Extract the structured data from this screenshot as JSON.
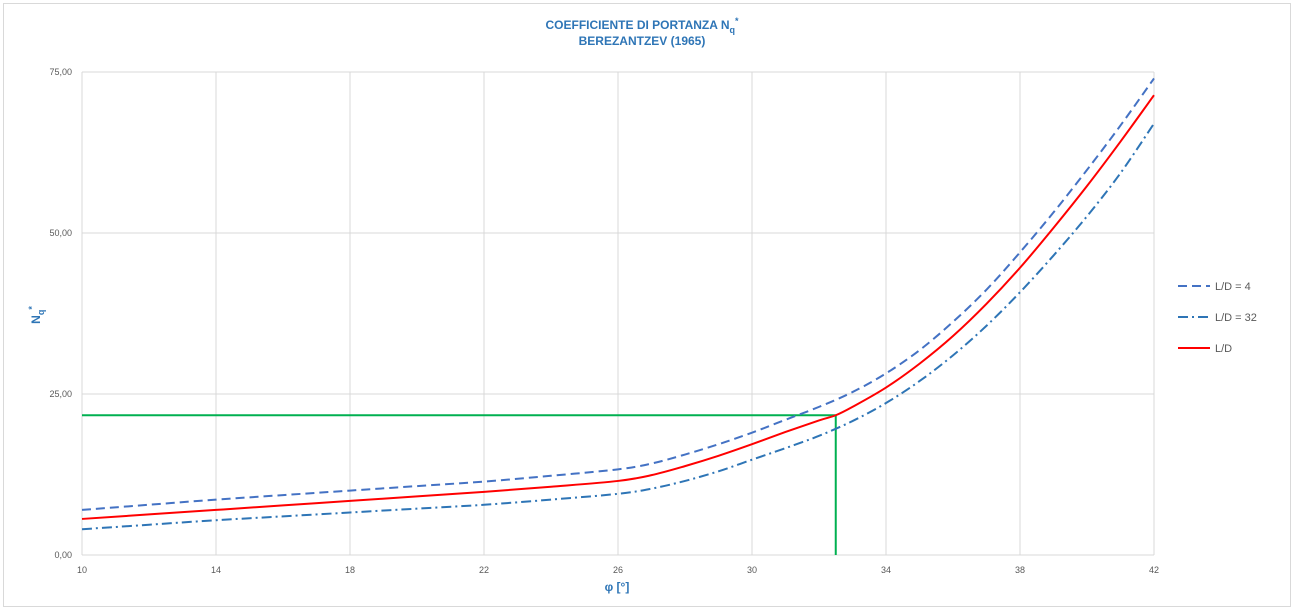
{
  "chart_data": {
    "type": "line",
    "title_line1": "COEFFICIENTE DI PORTANZA  N",
    "title_sub": "q",
    "title_sup": "*",
    "title_line2": "BEREZANTZEV (1965)",
    "xlabel": "φ [°]",
    "ylabel_main": "N",
    "ylabel_sub": "q",
    "ylabel_sup": "*",
    "xlim": [
      10,
      42
    ],
    "ylim": [
      0,
      75
    ],
    "xticks": [
      10,
      14,
      18,
      22,
      26,
      30,
      34,
      38,
      42
    ],
    "yticks": [
      0,
      25,
      50,
      75
    ],
    "xtick_labels": [
      "10",
      "14",
      "18",
      "22",
      "26",
      "30",
      "34",
      "38",
      "42"
    ],
    "ytick_labels": [
      "0,00",
      "25,00",
      "50,00",
      "75,00"
    ],
    "grid": true,
    "legend_position": "right",
    "series": [
      {
        "name": "L/D = 4",
        "color": "#4472c4",
        "dash": "dashed",
        "x": [
          10,
          12,
          14,
          16,
          18,
          20,
          22,
          24,
          26,
          27,
          28,
          29,
          30,
          31,
          32,
          33,
          34,
          35,
          36,
          37,
          38,
          39,
          40,
          41,
          42
        ],
        "y": [
          7.0,
          7.8,
          8.6,
          9.3,
          10.0,
          10.7,
          11.4,
          12.3,
          13.3,
          14.2,
          15.6,
          17.2,
          19.0,
          21.0,
          23.0,
          25.3,
          28.2,
          31.8,
          36.2,
          41.2,
          47.0,
          53.2,
          59.8,
          66.7,
          74.0
        ]
      },
      {
        "name": "L/D = 32",
        "color": "#2e75b6",
        "dash": "dashdot",
        "x": [
          10,
          12,
          14,
          16,
          18,
          20,
          22,
          24,
          26,
          27,
          28,
          29,
          30,
          31,
          32,
          33,
          34,
          35,
          36,
          37,
          38,
          39,
          40,
          41,
          42
        ],
        "y": [
          4.0,
          4.7,
          5.4,
          6.0,
          6.6,
          7.2,
          7.8,
          8.6,
          9.5,
          10.3,
          11.5,
          13.0,
          14.8,
          16.6,
          18.5,
          20.8,
          23.6,
          27.0,
          31.0,
          35.6,
          40.8,
          46.5,
          52.6,
          59.3,
          67.0
        ]
      },
      {
        "name": "L/D",
        "color": "#ff0000",
        "dash": "solid",
        "x": [
          10,
          12,
          14,
          16,
          18,
          20,
          22,
          24,
          26,
          27,
          28,
          29,
          30,
          31,
          32,
          32.5,
          33,
          34,
          35,
          36,
          37,
          38,
          39,
          40,
          41,
          42
        ],
        "y": [
          5.6,
          6.3,
          7.0,
          7.7,
          8.4,
          9.1,
          9.8,
          10.6,
          11.5,
          12.4,
          13.8,
          15.4,
          17.2,
          19.1,
          20.9,
          21.7,
          23.0,
          26.0,
          29.7,
          34.0,
          39.0,
          44.6,
          50.8,
          57.3,
          64.2,
          71.4
        ]
      }
    ],
    "reference_lines": {
      "color": "#00b050",
      "x_value": 32.5,
      "y_value": 21.7
    }
  }
}
